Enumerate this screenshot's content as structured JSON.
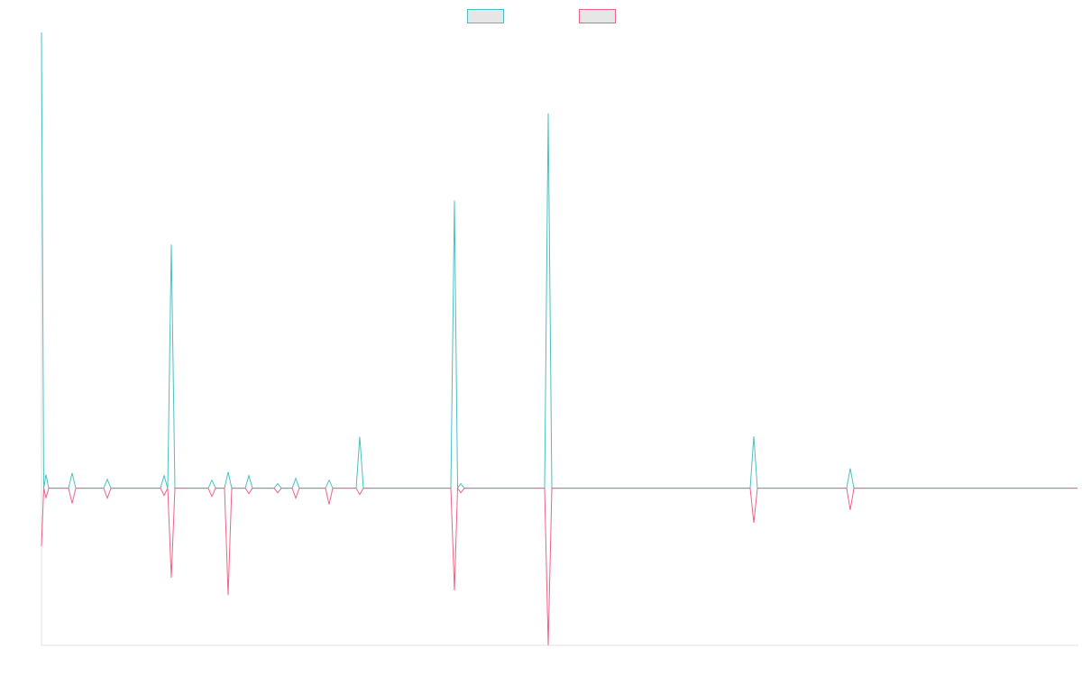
{
  "chart_data": {
    "type": "line",
    "x": [
      0,
      2.5,
      5,
      8,
      30,
      34,
      38,
      69,
      73,
      77,
      132,
      136,
      140,
      144,
      148,
      185,
      189,
      193,
      203,
      207,
      211,
      226,
      230,
      234,
      258,
      262,
      266,
      278,
      282,
      286,
      315,
      319,
      323,
      349,
      353,
      357,
      454,
      458,
      461.5,
      465,
      469,
      558,
      562,
      566,
      786,
      790,
      794,
      893,
      897,
      901,
      1149
    ],
    "series": [
      {
        "color": "#4bc0c0",
        "values": [
          290,
          0,
          8.6,
          0,
          0,
          9.7,
          0,
          0,
          5.7,
          0,
          0,
          8,
          0,
          155,
          0,
          0,
          5.2,
          0,
          0,
          10.3,
          0,
          0,
          8,
          0,
          0,
          2.9,
          0,
          0,
          6.3,
          0,
          0,
          5.2,
          0,
          0,
          32.7,
          0,
          0,
          183,
          0,
          2.9,
          0,
          0,
          238.5,
          0,
          0,
          33,
          0,
          0,
          12.6,
          0,
          0
        ]
      },
      {
        "color": "#f06289",
        "values": [
          -37,
          0,
          -6.3,
          0,
          0,
          -9.7,
          0,
          0,
          -6.3,
          0,
          0,
          -4.6,
          0,
          -57,
          0,
          0,
          -5.2,
          0,
          0,
          -68,
          0,
          0,
          -3.4,
          0,
          0,
          -2.9,
          0,
          0,
          -6.3,
          0,
          0,
          -10.3,
          0,
          0,
          -4,
          0,
          0,
          -65,
          0,
          -2.9,
          0,
          0,
          -100,
          0,
          0,
          -22,
          0,
          0,
          -13.8,
          0,
          0
        ]
      }
    ],
    "xlim": [
      0,
      1150
    ],
    "ylim": [
      -100,
      290
    ],
    "grid": false
  }
}
